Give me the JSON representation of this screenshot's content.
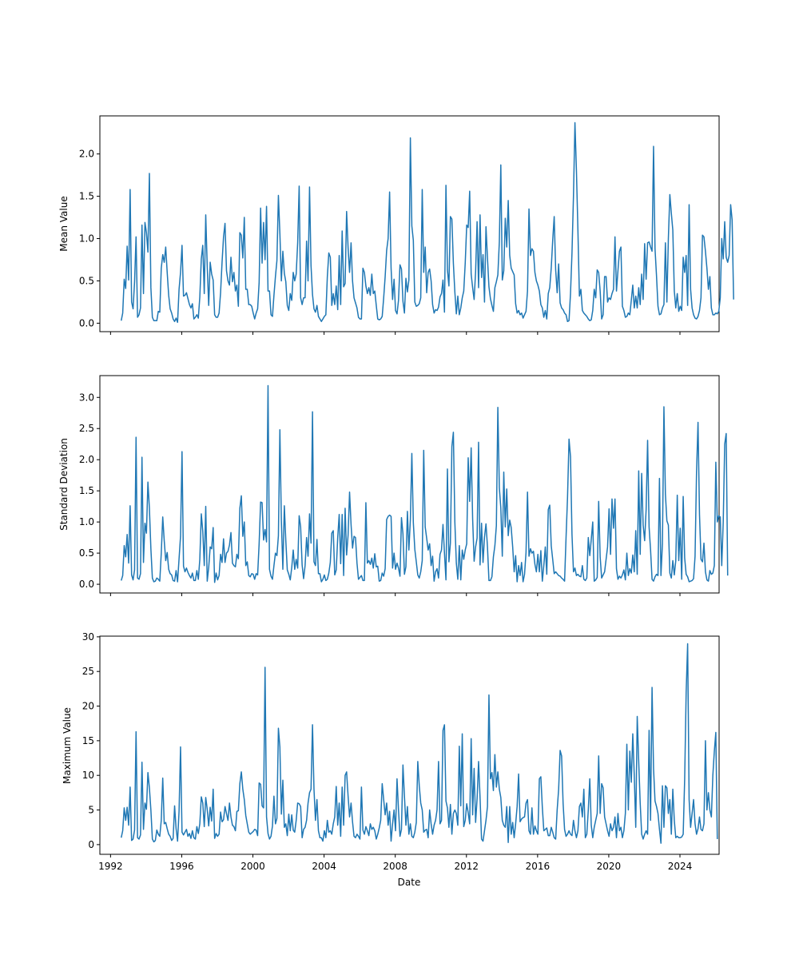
{
  "chart_data": [
    {
      "type": "line",
      "ylabel": "Mean Value",
      "xlabel": "",
      "xlim": [
        1991.4,
        2026.2
      ],
      "ylim": [
        -0.1,
        2.45
      ],
      "x_ticks": [
        "1992",
        "1996",
        "2000",
        "2004",
        "2008",
        "2012",
        "2016",
        "2020",
        "2024"
      ],
      "y_ticks": [
        "0.0",
        "0.5",
        "1.0",
        "1.5",
        "2.0"
      ],
      "color": "#1f77b4",
      "x_start": 1992.6,
      "x_step": 0.08333,
      "values": [
        0.03,
        0.12,
        0.52,
        0.41,
        0.91,
        0.51,
        1.58,
        0.25,
        0.17,
        0.49,
        1.02,
        0.07,
        0.1,
        0.18,
        1.16,
        0.35,
        1.19,
        1.07,
        0.84,
        1.77,
        0.42,
        0.07,
        0.03,
        0.03,
        0.03,
        0.14,
        0.13,
        0.65,
        0.81,
        0.72,
        0.9,
        0.6,
        0.33,
        0.17,
        0.12,
        0.05,
        0.02,
        0.06,
        0.01,
        0.4,
        0.6,
        0.92,
        0.32,
        0.33,
        0.36,
        0.29,
        0.22,
        0.18,
        0.23,
        0.05,
        0.07,
        0.1,
        0.06,
        0.31,
        0.76,
        0.92,
        0.35,
        1.28,
        0.67,
        0.21,
        0.72,
        0.58,
        0.51,
        0.1,
        0.07,
        0.07,
        0.12,
        0.36,
        0.72,
        1.02,
        1.18,
        0.62,
        0.5,
        0.45,
        0.78,
        0.49,
        0.6,
        0.38,
        0.45,
        0.2,
        1.07,
        1.04,
        0.77,
        1.25,
        0.4,
        0.4,
        0.22,
        0.22,
        0.2,
        0.12,
        0.05,
        0.12,
        0.17,
        0.48,
        1.36,
        0.71,
        1.19,
        0.75,
        1.38,
        0.38,
        0.38,
        0.1,
        0.08,
        0.33,
        0.55,
        0.74,
        1.51,
        1.06,
        0.5,
        0.85,
        0.59,
        0.49,
        0.21,
        0.15,
        0.35,
        0.27,
        0.6,
        0.5,
        0.58,
        0.95,
        1.62,
        0.3,
        0.22,
        0.3,
        0.3,
        0.97,
        0.5,
        1.61,
        0.68,
        0.34,
        0.17,
        0.13,
        0.21,
        0.08,
        0.05,
        0.02,
        0.05,
        0.08,
        0.1,
        0.55,
        0.83,
        0.78,
        0.21,
        0.35,
        0.22,
        0.44,
        0.16,
        0.8,
        0.22,
        1.09,
        0.43,
        0.47,
        1.32,
        0.89,
        0.6,
        0.95,
        0.5,
        0.3,
        0.24,
        0.18,
        0.07,
        0.05,
        0.05,
        0.65,
        0.6,
        0.44,
        0.35,
        0.42,
        0.33,
        0.58,
        0.35,
        0.38,
        0.21,
        0.05,
        0.04,
        0.05,
        0.08,
        0.3,
        0.55,
        0.86,
        1.0,
        1.55,
        0.65,
        0.28,
        0.52,
        0.15,
        0.11,
        0.27,
        0.69,
        0.64,
        0.26,
        0.12,
        0.53,
        0.37,
        0.51,
        2.19,
        1.15,
        0.98,
        0.25,
        0.2,
        0.21,
        0.23,
        0.3,
        1.58,
        0.6,
        0.9,
        0.36,
        0.6,
        0.64,
        0.5,
        0.22,
        0.12,
        0.16,
        0.15,
        0.19,
        0.31,
        0.35,
        0.51,
        0.13,
        1.63,
        0.63,
        0.44,
        1.26,
        1.23,
        0.71,
        0.37,
        0.11,
        0.32,
        0.1,
        0.18,
        0.3,
        0.38,
        0.71,
        1.16,
        1.13,
        1.56,
        0.58,
        0.42,
        0.28,
        0.61,
        1.2,
        0.42,
        1.28,
        0.54,
        0.81,
        0.25,
        1.14,
        0.77,
        0.43,
        0.29,
        0.21,
        0.14,
        0.42,
        0.49,
        0.57,
        0.96,
        1.87,
        0.51,
        0.62,
        1.24,
        0.9,
        1.45,
        0.8,
        0.65,
        0.61,
        0.57,
        0.23,
        0.12,
        0.15,
        0.1,
        0.12,
        0.06,
        0.1,
        0.14,
        0.38,
        1.35,
        0.8,
        0.88,
        0.85,
        0.6,
        0.5,
        0.45,
        0.38,
        0.22,
        0.18,
        0.07,
        0.15,
        0.05,
        0.35,
        0.42,
        0.65,
        0.98,
        1.26,
        0.63,
        0.36,
        0.7,
        0.24,
        0.18,
        0.16,
        0.12,
        0.1,
        0.02,
        0.03,
        0.35,
        0.83,
        1.5,
        2.37,
        1.8,
        1.1,
        0.32,
        0.4,
        0.15,
        0.12,
        0.1,
        0.08,
        0.05,
        0.03,
        0.04,
        0.15,
        0.4,
        0.3,
        0.63,
        0.6,
        0.38,
        0.05,
        0.1,
        0.55,
        0.55,
        0.25,
        0.3,
        0.28,
        0.35,
        0.4,
        1.02,
        0.38,
        0.62,
        0.85,
        0.9,
        0.2,
        0.15,
        0.07,
        0.08,
        0.12,
        0.1,
        0.27,
        0.45,
        0.18,
        0.32,
        0.18,
        0.42,
        0.22,
        0.58,
        0.28,
        0.94,
        0.52,
        0.95,
        0.96,
        0.9,
        0.85,
        2.09,
        0.88,
        0.56,
        0.2,
        0.1,
        0.11,
        0.18,
        0.22,
        0.95,
        0.25,
        1.0,
        1.52,
        1.3,
        1.1,
        0.38,
        0.18,
        0.35,
        0.14,
        0.2,
        0.15,
        0.78,
        0.6,
        0.8,
        0.21,
        1.4,
        0.4,
        0.18,
        0.1,
        0.06,
        0.05,
        0.08,
        0.15,
        0.3,
        1.04,
        1.02,
        0.85,
        0.65,
        0.4,
        0.55,
        0.18,
        0.1,
        0.1,
        0.12,
        0.11,
        0.14,
        0.3,
        1.0,
        0.76,
        1.2,
        0.78,
        0.72,
        0.8,
        1.4,
        1.22,
        0.28
      ]
    },
    {
      "type": "line",
      "ylabel": "Standard Deviation",
      "xlabel": "",
      "xlim": [
        1991.4,
        2026.2
      ],
      "ylim": [
        -0.14,
        3.35
      ],
      "x_ticks": [
        "1992",
        "1996",
        "2000",
        "2004",
        "2008",
        "2012",
        "2016",
        "2020",
        "2024"
      ],
      "y_ticks": [
        "0.0",
        "0.5",
        "1.0",
        "1.5",
        "2.0",
        "2.5",
        "3.0"
      ],
      "color": "#1f77b4",
      "x_start": 1992.6,
      "x_step": 0.08333,
      "values": [
        0.06,
        0.14,
        0.62,
        0.44,
        0.8,
        0.34,
        1.26,
        0.15,
        0.07,
        0.23,
        2.36,
        0.1,
        0.08,
        0.17,
        2.04,
        0.35,
        0.98,
        0.82,
        1.64,
        1.22,
        0.57,
        0.1,
        0.04,
        0.05,
        0.1,
        0.08,
        0.05,
        0.5,
        1.08,
        0.7,
        0.38,
        0.51,
        0.24,
        0.17,
        0.15,
        0.06,
        0.05,
        0.22,
        0.04,
        0.41,
        0.77,
        2.13,
        0.29,
        0.2,
        0.26,
        0.19,
        0.14,
        0.1,
        0.18,
        0.06,
        0.06,
        0.22,
        0.08,
        0.4,
        1.13,
        0.85,
        0.3,
        1.25,
        0.05,
        0.27,
        0.6,
        0.57,
        0.91,
        0.03,
        0.18,
        0.07,
        0.14,
        0.48,
        0.35,
        0.73,
        0.35,
        0.5,
        0.53,
        0.63,
        0.83,
        0.34,
        0.3,
        0.28,
        0.48,
        0.41,
        1.22,
        1.42,
        0.77,
        1.0,
        0.3,
        0.36,
        0.14,
        0.12,
        0.17,
        0.16,
        0.08,
        0.17,
        0.15,
        0.65,
        1.32,
        1.31,
        0.71,
        0.88,
        0.68,
        3.19,
        0.24,
        0.13,
        0.08,
        0.3,
        0.5,
        0.46,
        0.78,
        2.48,
        1.02,
        0.24,
        1.26,
        0.7,
        0.23,
        0.16,
        0.07,
        0.27,
        0.55,
        0.24,
        0.4,
        0.26,
        1.1,
        0.92,
        0.31,
        0.09,
        0.3,
        0.75,
        0.45,
        1.13,
        0.66,
        2.77,
        0.36,
        0.3,
        0.72,
        0.17,
        0.17,
        0.04,
        0.08,
        0.15,
        0.06,
        0.08,
        0.18,
        0.35,
        0.82,
        0.86,
        0.15,
        0.23,
        0.75,
        1.12,
        0.33,
        1.12,
        0.14,
        1.22,
        0.47,
        0.79,
        1.48,
        0.96,
        0.58,
        0.77,
        0.75,
        0.34,
        0.08,
        0.11,
        0.14,
        0.06,
        0.06,
        1.31,
        0.34,
        0.38,
        0.32,
        0.42,
        0.26,
        0.49,
        0.28,
        0.29,
        0.05,
        0.06,
        0.18,
        0.13,
        0.25,
        1.04,
        1.09,
        1.11,
        1.09,
        0.26,
        0.5,
        0.24,
        0.34,
        0.26,
        0.13,
        1.07,
        0.81,
        0.16,
        0.28,
        1.17,
        0.55,
        1.04,
        2.1,
        0.99,
        0.56,
        0.36,
        0.15,
        0.1,
        0.2,
        0.38,
        2.15,
        0.92,
        0.74,
        0.55,
        0.65,
        0.3,
        0.45,
        0.05,
        0.2,
        0.25,
        0.1,
        0.48,
        0.55,
        0.96,
        0.5,
        0.07,
        1.85,
        0.36,
        0.66,
        2.21,
        2.44,
        1.0,
        0.34,
        0.08,
        0.62,
        0.07,
        0.55,
        0.4,
        0.55,
        0.65,
        2.03,
        1.33,
        2.19,
        1.05,
        0.37,
        0.6,
        0.74,
        2.28,
        0.31,
        0.98,
        0.35,
        0.76,
        0.97,
        0.6,
        0.06,
        0.06,
        0.12,
        0.44,
        0.62,
        0.94,
        2.84,
        1.55,
        1.23,
        0.45,
        1.8,
        0.92,
        1.53,
        0.78,
        1.03,
        0.91,
        0.6,
        0.2,
        0.46,
        0.04,
        0.3,
        0.14,
        0.35,
        0.04,
        0.16,
        0.51,
        1.48,
        0.45,
        0.57,
        0.5,
        0.53,
        0.32,
        0.2,
        0.48,
        0.2,
        0.54,
        0.05,
        0.3,
        0.6,
        0.16,
        1.2,
        1.27,
        0.62,
        0.4,
        0.17,
        0.2,
        0.17,
        0.14,
        0.13,
        0.1,
        0.08,
        0.05,
        0.75,
        1.4,
        2.33,
        2.05,
        0.8,
        0.2,
        0.26,
        0.14,
        0.16,
        0.13,
        0.12,
        0.3,
        0.08,
        0.06,
        0.1,
        0.75,
        0.46,
        0.72,
        1.0,
        0.05,
        0.07,
        0.11,
        1.33,
        0.44,
        0.1,
        0.15,
        0.2,
        0.4,
        0.6,
        1.21,
        0.48,
        1.37,
        0.9,
        1.37,
        0.25,
        0.08,
        0.13,
        0.1,
        0.15,
        0.23,
        0.07,
        0.5,
        0.14,
        0.25,
        0.18,
        0.47,
        0.2,
        0.86,
        0.16,
        1.82,
        0.48,
        1.78,
        0.95,
        0.7,
        1.2,
        2.31,
        0.92,
        0.55,
        0.08,
        0.05,
        0.12,
        0.16,
        0.14,
        1.7,
        0.14,
        0.65,
        2.85,
        1.45,
        1.02,
        0.95,
        0.18,
        0.1,
        0.38,
        0.15,
        0.38,
        1.43,
        0.38,
        0.9,
        0.08,
        1.41,
        0.42,
        0.16,
        0.12,
        0.04,
        0.05,
        0.06,
        0.09,
        0.45,
        1.8,
        2.6,
        1.12,
        0.4,
        0.36,
        0.66,
        0.2,
        0.07,
        0.05,
        0.22,
        0.16,
        0.18,
        0.3,
        1.96,
        1.0,
        1.1,
        1.08,
        0.3,
        1.0,
        2.25,
        2.42,
        0.14
      ]
    },
    {
      "type": "line",
      "ylabel": "Maximum Value",
      "xlabel": "Date",
      "xlim": [
        1991.4,
        2026.2
      ],
      "ylim": [
        -1.4,
        30.1
      ],
      "x_ticks": [
        "1992",
        "1996",
        "2000",
        "2004",
        "2008",
        "2012",
        "2016",
        "2020",
        "2024"
      ],
      "y_ticks": [
        "0",
        "5",
        "10",
        "15",
        "20",
        "25",
        "30"
      ],
      "color": "#1f77b4",
      "x_start": 1992.6,
      "x_step": 0.08333,
      "values": [
        1.0,
        2.0,
        5.3,
        3.5,
        5.4,
        2.8,
        8.3,
        0.6,
        0.8,
        2.1,
        16.3,
        1.0,
        0.8,
        1.4,
        11.9,
        2.2,
        6.0,
        5.1,
        10.4,
        8.2,
        5.0,
        0.8,
        0.4,
        0.6,
        2.1,
        1.5,
        1.2,
        3.5,
        9.6,
        3.0,
        3.2,
        2.3,
        1.5,
        1.2,
        0.6,
        0.9,
        5.6,
        2.3,
        0.5,
        4.8,
        14.1,
        1.8,
        1.4,
        1.8,
        2.2,
        1.2,
        1.6,
        0.9,
        2.0,
        1.0,
        0.8,
        2.6,
        1.6,
        3.0,
        6.9,
        6.0,
        2.6,
        6.8,
        5.1,
        2.7,
        5.4,
        3.4,
        8.0,
        0.9,
        1.6,
        1.2,
        1.5,
        4.7,
        3.3,
        3.6,
        5.5,
        4.5,
        3.5,
        6.0,
        4.0,
        2.8,
        2.6,
        2.0,
        4.8,
        4.9,
        8.8,
        10.5,
        8.0,
        6.5,
        4.2,
        3.0,
        1.8,
        1.5,
        1.7,
        1.9,
        2.2,
        2.1,
        1.3,
        8.9,
        8.7,
        5.6,
        5.3,
        25.6,
        4.0,
        1.6,
        0.8,
        1.2,
        2.7,
        7.0,
        3.0,
        3.8,
        16.8,
        14.1,
        4.4,
        9.3,
        2.5,
        3.0,
        1.3,
        4.4,
        2.0,
        4.3,
        2.1,
        1.8,
        3.5,
        6.0,
        5.9,
        5.5,
        1.0,
        2.2,
        2.5,
        3.5,
        6.0,
        7.5,
        8.0,
        17.3,
        8.0,
        3.5,
        6.5,
        2.0,
        1.0,
        1.0,
        0.5,
        2.0,
        1.0,
        3.5,
        1.8,
        2.0,
        1.5,
        3.0,
        4.0,
        8.4,
        2.8,
        6.0,
        1.2,
        8.3,
        2.8,
        10.0,
        10.5,
        7.0,
        4.0,
        6.0,
        3.3,
        1.2,
        1.0,
        1.5,
        1.2,
        0.8,
        8.3,
        2.1,
        1.5,
        2.6,
        2.0,
        1.3,
        3.0,
        2.2,
        2.5,
        2.0,
        0.8,
        1.5,
        2.4,
        3.5,
        8.8,
        6.5,
        4.3,
        6.0,
        2.8,
        4.8,
        0.5,
        3.0,
        5.0,
        2.0,
        9.5,
        5.0,
        1.2,
        2.2,
        11.5,
        7.0,
        2.8,
        5.5,
        1.5,
        3.0,
        1.2,
        1.0,
        1.8,
        3.2,
        12.0,
        8.5,
        6.0,
        5.0,
        1.8,
        2.1,
        2.2,
        1.0,
        5.0,
        3.0,
        1.5,
        2.8,
        3.5,
        5.0,
        12.0,
        3.0,
        3.5,
        16.5,
        17.3,
        6.3,
        5.3,
        2.5,
        5.8,
        1.5,
        4.5,
        5.0,
        4.5,
        2.8,
        14.2,
        5.6,
        16.0,
        2.6,
        3.5,
        5.9,
        4.6,
        3.0,
        15.3,
        4.3,
        11.0,
        3.2,
        6.6,
        12.0,
        6.8,
        0.8,
        0.5,
        2.0,
        3.5,
        5.5,
        21.6,
        9.5,
        10.4,
        7.8,
        13.0,
        8.3,
        10.5,
        8.0,
        6.8,
        3.5,
        2.8,
        2.5,
        5.5,
        0.3,
        5.5,
        1.5,
        3.2,
        1.0,
        3.0,
        5.5,
        10.2,
        3.3,
        3.7,
        3.9,
        4.0,
        6.0,
        6.5,
        2.0,
        1.5,
        5.3,
        1.5,
        2.7,
        2.0,
        1.5,
        9.5,
        9.8,
        5.4,
        2.0,
        2.2,
        2.4,
        1.3,
        1.3,
        2.5,
        1.8,
        1.0,
        0.8,
        5.0,
        8.0,
        13.6,
        12.8,
        6.0,
        2.2,
        1.2,
        1.5,
        2.0,
        1.5,
        1.3,
        3.5,
        2.0,
        1.0,
        2.0,
        5.5,
        6.0,
        4.0,
        8.0,
        1.0,
        1.5,
        5.0,
        9.5,
        2.8,
        1.0,
        2.5,
        3.5,
        4.5,
        12.8,
        4.5,
        8.8,
        8.2,
        4.0,
        3.0,
        2.0,
        1.2,
        3.0,
        2.0,
        2.5,
        4.0,
        1.0,
        4.5,
        2.0,
        2.5,
        1.0,
        2.0,
        4.5,
        14.5,
        5.0,
        13.5,
        9.0,
        16.0,
        10.0,
        2.5,
        18.5,
        12.0,
        6.0,
        1.5,
        0.8,
        1.5,
        2.0,
        1.5,
        16.5,
        3.5,
        22.7,
        11.0,
        6.3,
        5.5,
        4.5,
        2.2,
        0.2,
        8.5,
        2.5,
        8.5,
        8.2,
        4.5,
        6.5,
        1.5,
        8.0,
        3.5,
        1.0,
        1.2,
        1.0,
        1.0,
        1.1,
        1.5,
        9.5,
        22.0,
        29.0,
        6.5,
        2.5,
        4.5,
        6.5,
        3.0,
        1.5,
        2.3,
        4.0,
        2.2,
        2.0,
        3.0,
        15.0,
        5.0,
        7.5,
        5.0,
        4.0,
        10.0,
        13.5,
        16.2,
        0.8
      ]
    }
  ]
}
